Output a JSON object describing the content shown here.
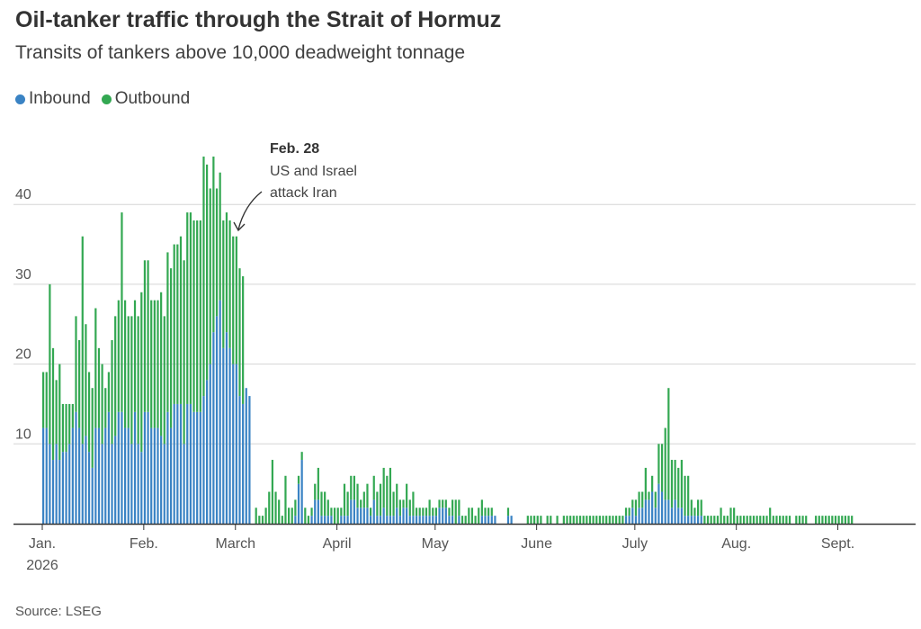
{
  "title": "Oil-tanker traffic through the Strait of Hormuz",
  "subtitle": "Transits of tankers above 10,000 deadweight tonnage",
  "source": "Source: LSEG",
  "colors": {
    "inbound": "#3a83c4",
    "outbound": "#33a852",
    "grid": "#d5d5d5",
    "axis": "#333333"
  },
  "legend": [
    {
      "label": "Inbound",
      "color": "#3a83c4"
    },
    {
      "label": "Outbound",
      "color": "#33a852"
    }
  ],
  "annotation": {
    "date": "Feb. 28",
    "lines": [
      "US and Israel",
      "attack Iran"
    ]
  },
  "chart_data": {
    "type": "bar",
    "stacked": true,
    "x_start_date": "2026-01-01",
    "ylim": [
      0,
      50
    ],
    "yticks": [
      10,
      20,
      30,
      40
    ],
    "grid": true,
    "legend_position": "top-left",
    "xticks": [
      {
        "label": "Jan.",
        "sub": "2026",
        "day": 0
      },
      {
        "label": "Feb.",
        "day": 31
      },
      {
        "label": "March",
        "day": 59
      },
      {
        "label": "April",
        "day": 90
      },
      {
        "label": "May",
        "day": 120
      },
      {
        "label": "June",
        "day": 151
      },
      {
        "label": "July",
        "day": 181
      },
      {
        "label": "Aug.",
        "day": 212
      },
      {
        "label": "Sept.",
        "day": 243
      }
    ],
    "series": [
      {
        "name": "Inbound",
        "values": [
          12,
          12,
          10,
          8,
          10,
          8,
          9,
          9,
          10,
          12,
          14,
          12,
          10,
          11,
          9,
          7,
          12,
          12,
          10,
          12,
          14,
          10,
          11,
          14,
          14,
          12,
          12,
          10,
          14,
          10,
          9,
          14,
          14,
          12,
          12,
          12,
          11,
          10,
          14,
          12,
          15,
          15,
          15,
          10,
          15,
          15,
          14,
          14,
          14,
          16,
          18,
          20,
          24,
          26,
          28,
          22,
          24,
          22,
          20,
          20,
          16,
          15,
          17,
          16,
          0,
          0,
          0,
          0,
          0,
          0,
          0,
          0,
          0,
          0,
          0,
          0,
          0,
          1,
          5,
          8,
          0,
          0,
          1,
          3,
          3,
          1,
          1,
          1,
          1,
          0,
          0,
          1,
          1,
          1,
          3,
          3,
          2,
          2,
          2,
          2,
          1,
          3,
          1,
          1,
          2,
          1,
          1,
          1,
          2,
          1,
          2,
          2,
          1,
          1,
          1,
          1,
          1,
          1,
          1,
          1,
          1,
          2,
          2,
          2,
          1,
          1,
          0,
          1,
          0,
          0,
          0,
          0,
          0,
          0,
          1,
          1,
          1,
          1,
          1,
          0,
          0,
          0,
          1,
          1,
          0,
          0,
          0,
          0,
          0,
          0,
          0,
          0,
          0,
          0,
          0,
          0,
          0,
          0,
          0,
          0,
          0,
          0,
          0,
          0,
          0,
          0,
          0,
          0,
          0,
          0,
          0,
          0,
          0,
          0,
          0,
          0,
          0,
          0,
          1,
          1,
          2,
          1,
          2,
          2,
          3,
          3,
          4,
          2,
          5,
          4,
          3,
          3,
          2,
          3,
          2,
          2,
          1,
          1,
          1,
          1,
          1,
          1,
          0,
          0,
          0,
          0,
          0,
          0,
          0,
          0,
          0,
          0,
          0,
          0,
          0,
          0,
          0,
          0,
          0,
          0,
          0,
          0,
          0,
          0,
          0,
          0,
          0,
          0,
          0,
          0,
          0,
          0,
          0,
          0,
          0,
          0,
          0,
          0,
          0,
          0,
          0,
          0,
          0,
          0,
          0,
          0,
          0,
          0,
          0,
          0,
          0,
          0,
          0,
          0,
          0,
          0,
          0,
          0,
          0,
          0,
          0,
          0,
          0,
          0,
          0,
          0,
          0,
          0,
          0,
          0,
          0,
          0,
          0,
          0,
          0,
          0,
          0,
          0,
          0,
          0,
          0,
          0,
          0,
          0,
          0
        ]
      },
      {
        "name": "Outbound",
        "values": [
          7,
          7,
          20,
          14,
          8,
          12,
          6,
          6,
          5,
          3,
          12,
          11,
          26,
          14,
          10,
          10,
          15,
          10,
          10,
          5,
          5,
          13,
          15,
          14,
          25,
          16,
          14,
          16,
          14,
          16,
          20,
          19,
          19,
          16,
          16,
          16,
          18,
          16,
          20,
          20,
          20,
          20,
          21,
          23,
          24,
          24,
          24,
          24,
          24,
          30,
          27,
          22,
          22,
          16,
          16,
          16,
          15,
          16,
          16,
          16,
          16,
          16,
          0,
          0,
          0,
          2,
          1,
          1,
          2,
          4,
          8,
          4,
          3,
          1,
          6,
          2,
          2,
          2,
          1,
          1,
          2,
          1,
          1,
          2,
          4,
          3,
          3,
          2,
          1,
          2,
          2,
          1,
          4,
          3,
          3,
          3,
          3,
          1,
          2,
          3,
          1,
          3,
          3,
          4,
          5,
          5,
          6,
          3,
          3,
          2,
          1,
          3,
          2,
          3,
          1,
          1,
          1,
          1,
          2,
          1,
          1,
          1,
          1,
          1,
          1,
          2,
          3,
          2,
          1,
          1,
          2,
          2,
          1,
          2,
          2,
          1,
          1,
          1,
          0,
          0,
          0,
          0,
          1,
          0,
          0,
          0,
          0,
          0,
          1,
          1,
          1,
          1,
          1,
          0,
          1,
          1,
          0,
          1,
          0,
          1,
          1,
          1,
          1,
          1,
          1,
          1,
          1,
          1,
          1,
          1,
          1,
          1,
          1,
          1,
          1,
          1,
          1,
          1,
          1,
          1,
          1,
          2,
          2,
          2,
          4,
          1,
          2,
          2,
          5,
          6,
          9,
          14,
          6,
          5,
          5,
          6,
          5,
          5,
          2,
          1,
          2,
          2,
          1,
          1,
          1,
          1,
          1,
          2,
          1,
          1,
          2,
          2,
          1,
          1,
          1,
          1,
          1,
          1,
          1,
          1,
          1,
          1,
          2,
          1,
          1,
          1,
          1,
          1,
          1,
          0,
          1,
          1,
          1,
          1,
          0,
          0,
          1,
          1,
          1,
          1,
          1,
          1,
          1,
          1,
          1,
          1,
          1,
          1,
          0,
          0,
          0,
          0,
          0,
          0,
          0,
          0,
          0,
          0,
          0,
          0,
          0,
          0,
          0,
          0,
          0,
          0,
          0,
          0,
          0,
          0,
          0,
          0,
          0,
          0,
          0,
          0,
          0,
          0,
          0,
          0,
          0,
          0
        ]
      }
    ]
  }
}
